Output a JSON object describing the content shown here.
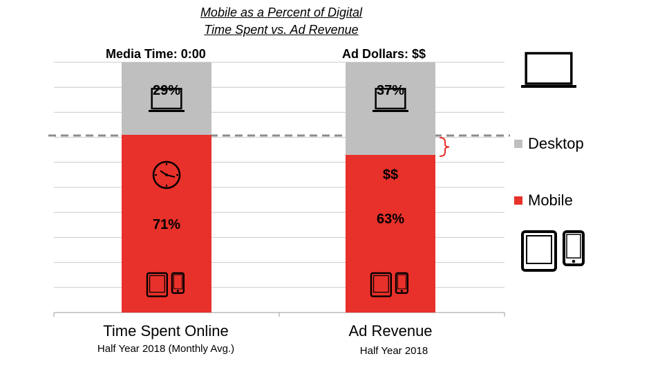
{
  "chart_data": {
    "type": "bar",
    "stacked": true,
    "title_line1": "Mobile as a Percent of Digital",
    "title_line2": "Time Spent vs. Ad Revenue",
    "categories": [
      "Time Spent Online",
      "Ad Revenue"
    ],
    "category_subtitles": [
      "Half Year 2018 (Monthly Avg.)",
      "Half Year 2018"
    ],
    "column_headers": [
      "Media Time:  0:00",
      "Ad Dollars:  $$"
    ],
    "series": [
      {
        "name": "Mobile",
        "values": [
          71,
          63
        ],
        "labels": [
          "71%",
          "63%"
        ],
        "color": "#e8312a"
      },
      {
        "name": "Desktop",
        "values": [
          29,
          37
        ],
        "labels": [
          "29%",
          "37%"
        ],
        "color": "#bfbfbf"
      }
    ],
    "annotations": [
      "$$"
    ],
    "ylim": [
      0,
      100
    ],
    "grid": true,
    "reference_line": {
      "value": 71,
      "style": "dashed",
      "color": "#8c8c8c"
    },
    "legend_position": "right",
    "icons": {
      "desktop": "laptop-icon",
      "mobile": "tablet-phone-icon",
      "time": "clock-icon"
    }
  }
}
